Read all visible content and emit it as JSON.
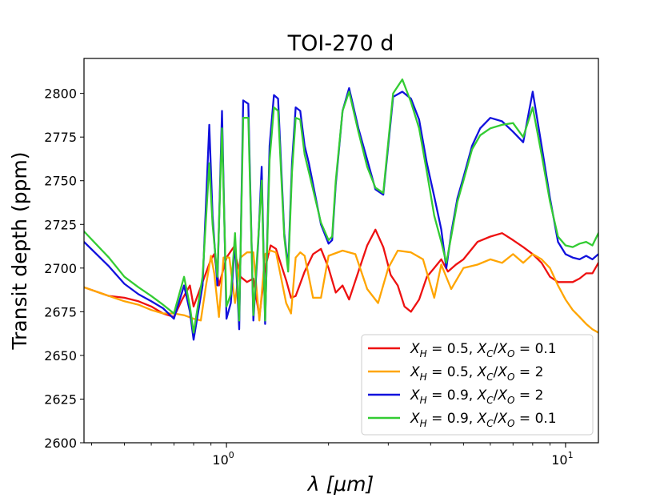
{
  "chart_data": {
    "type": "line",
    "title": "TOI-270 d",
    "xlabel": "λ [μm]",
    "ylabel": "Transit depth (ppm)",
    "xscale": "log",
    "xlim": [
      0.38,
      12.5
    ],
    "ylim": [
      2600,
      2820
    ],
    "yticks": [
      2600,
      2625,
      2650,
      2675,
      2700,
      2725,
      2750,
      2775,
      2800
    ],
    "xticks": [
      {
        "value": 1,
        "base": "10",
        "exp": "0"
      },
      {
        "value": 10,
        "base": "10",
        "exp": "1"
      }
    ],
    "legend_position": "lower-right",
    "series": [
      {
        "name_parts": {
          "xh": "0.5",
          "ratio": "0.1"
        },
        "color": "#ee1111",
        "x": [
          0.38,
          0.45,
          0.5,
          0.55,
          0.6,
          0.65,
          0.7,
          0.74,
          0.78,
          0.8,
          0.85,
          0.9,
          0.92,
          0.95,
          1.0,
          1.05,
          1.1,
          1.15,
          1.2,
          1.25,
          1.3,
          1.35,
          1.4,
          1.5,
          1.55,
          1.6,
          1.7,
          1.8,
          1.9,
          2.0,
          2.1,
          2.2,
          2.3,
          2.45,
          2.6,
          2.75,
          2.9,
          3.05,
          3.2,
          3.35,
          3.5,
          3.7,
          3.9,
          4.1,
          4.3,
          4.5,
          4.75,
          5.0,
          5.5,
          6.0,
          6.5,
          7.0,
          7.5,
          8.0,
          8.5,
          9.0,
          9.5,
          10.0,
          10.5,
          11.0,
          11.5,
          12.0,
          12.5
        ],
        "y": [
          2689,
          2684,
          2683,
          2681,
          2678,
          2674,
          2672,
          2682,
          2690,
          2678,
          2692,
          2705,
          2708,
          2690,
          2706,
          2712,
          2695,
          2692,
          2694,
          2672,
          2700,
          2713,
          2711,
          2693,
          2683,
          2684,
          2698,
          2708,
          2711,
          2700,
          2686,
          2690,
          2682,
          2698,
          2713,
          2722,
          2712,
          2696,
          2690,
          2678,
          2675,
          2682,
          2695,
          2700,
          2705,
          2698,
          2702,
          2705,
          2715,
          2718,
          2720,
          2716,
          2712,
          2708,
          2703,
          2695,
          2692,
          2692,
          2692,
          2694,
          2697,
          2697,
          2703
        ]
      },
      {
        "name_parts": {
          "xh": "0.5",
          "ratio": "2"
        },
        "color": "#ffa500",
        "x": [
          0.38,
          0.45,
          0.5,
          0.55,
          0.6,
          0.65,
          0.7,
          0.75,
          0.8,
          0.84,
          0.87,
          0.9,
          0.92,
          0.95,
          0.98,
          1.02,
          1.06,
          1.1,
          1.15,
          1.2,
          1.25,
          1.3,
          1.35,
          1.4,
          1.5,
          1.55,
          1.6,
          1.65,
          1.7,
          1.8,
          1.9,
          2.0,
          2.2,
          2.4,
          2.6,
          2.8,
          3.0,
          3.2,
          3.5,
          3.8,
          4.1,
          4.3,
          4.6,
          5.0,
          5.5,
          6.0,
          6.5,
          7.0,
          7.5,
          8.0,
          8.5,
          9.0,
          9.5,
          10.0,
          10.5,
          11.0,
          11.5,
          12.0,
          12.5
        ],
        "y": [
          2689,
          2684,
          2681,
          2679,
          2676,
          2674,
          2674,
          2673,
          2671,
          2670,
          2690,
          2707,
          2697,
          2672,
          2706,
          2706,
          2680,
          2706,
          2709,
          2709,
          2670,
          2708,
          2710,
          2709,
          2680,
          2674,
          2706,
          2709,
          2707,
          2683,
          2683,
          2707,
          2710,
          2708,
          2688,
          2680,
          2700,
          2710,
          2709,
          2705,
          2683,
          2702,
          2688,
          2700,
          2702,
          2705,
          2703,
          2708,
          2703,
          2708,
          2705,
          2700,
          2690,
          2682,
          2676,
          2672,
          2668,
          2665,
          2663
        ]
      },
      {
        "name_parts": {
          "xh": "0.9",
          "ratio": "2"
        },
        "color": "#1111dd",
        "x": [
          0.38,
          0.45,
          0.5,
          0.55,
          0.6,
          0.65,
          0.7,
          0.75,
          0.78,
          0.8,
          0.85,
          0.89,
          0.91,
          0.94,
          0.97,
          1.0,
          1.03,
          1.06,
          1.09,
          1.12,
          1.16,
          1.2,
          1.24,
          1.27,
          1.3,
          1.34,
          1.38,
          1.42,
          1.48,
          1.52,
          1.56,
          1.6,
          1.65,
          1.7,
          1.75,
          1.8,
          1.9,
          2.0,
          2.05,
          2.1,
          2.2,
          2.3,
          2.45,
          2.6,
          2.75,
          2.9,
          3.0,
          3.1,
          3.3,
          3.5,
          3.7,
          3.9,
          4.1,
          4.3,
          4.45,
          4.6,
          4.8,
          5.0,
          5.3,
          5.6,
          6.0,
          6.5,
          7.0,
          7.5,
          8.0,
          8.5,
          9.0,
          9.5,
          10.0,
          10.5,
          11.0,
          11.5,
          12.0,
          12.5
        ],
        "y": [
          2715,
          2701,
          2691,
          2685,
          2681,
          2677,
          2671,
          2690,
          2675,
          2659,
          2690,
          2782,
          2730,
          2690,
          2790,
          2671,
          2680,
          2715,
          2665,
          2796,
          2794,
          2670,
          2714,
          2758,
          2668,
          2770,
          2799,
          2797,
          2720,
          2700,
          2760,
          2792,
          2790,
          2770,
          2760,
          2748,
          2725,
          2714,
          2716,
          2748,
          2790,
          2803,
          2780,
          2762,
          2745,
          2742,
          2770,
          2798,
          2801,
          2797,
          2785,
          2760,
          2741,
          2722,
          2700,
          2720,
          2740,
          2752,
          2770,
          2780,
          2786,
          2784,
          2778,
          2772,
          2801,
          2770,
          2740,
          2715,
          2708,
          2706,
          2705,
          2707,
          2705,
          2708
        ]
      },
      {
        "name_parts": {
          "xh": "0.9",
          "ratio": "0.1"
        },
        "color": "#33cc33",
        "x": [
          0.38,
          0.45,
          0.5,
          0.55,
          0.6,
          0.65,
          0.7,
          0.75,
          0.78,
          0.8,
          0.85,
          0.89,
          0.91,
          0.94,
          0.97,
          1.0,
          1.03,
          1.06,
          1.09,
          1.12,
          1.16,
          1.2,
          1.24,
          1.27,
          1.3,
          1.34,
          1.38,
          1.42,
          1.48,
          1.52,
          1.56,
          1.6,
          1.65,
          1.7,
          1.75,
          1.8,
          1.9,
          2.0,
          2.05,
          2.1,
          2.2,
          2.3,
          2.45,
          2.6,
          2.75,
          2.9,
          3.0,
          3.1,
          3.3,
          3.5,
          3.7,
          3.9,
          4.1,
          4.3,
          4.45,
          4.6,
          4.8,
          5.0,
          5.3,
          5.6,
          6.0,
          6.5,
          7.0,
          7.5,
          8.0,
          8.5,
          9.0,
          9.5,
          10.0,
          10.5,
          11.0,
          11.5,
          12.0,
          12.5
        ],
        "y": [
          2721,
          2706,
          2695,
          2689,
          2684,
          2679,
          2674,
          2695,
          2678,
          2663,
          2695,
          2760,
          2725,
          2695,
          2780,
          2678,
          2685,
          2720,
          2670,
          2786,
          2786,
          2673,
          2716,
          2750,
          2670,
          2762,
          2792,
          2790,
          2718,
          2698,
          2755,
          2786,
          2785,
          2765,
          2755,
          2745,
          2726,
          2716,
          2718,
          2750,
          2790,
          2801,
          2778,
          2758,
          2746,
          2743,
          2772,
          2800,
          2808,
          2795,
          2780,
          2755,
          2730,
          2715,
          2703,
          2718,
          2738,
          2750,
          2768,
          2776,
          2780,
          2782,
          2783,
          2775,
          2792,
          2765,
          2738,
          2718,
          2713,
          2712,
          2714,
          2715,
          2713,
          2720
        ]
      }
    ]
  }
}
